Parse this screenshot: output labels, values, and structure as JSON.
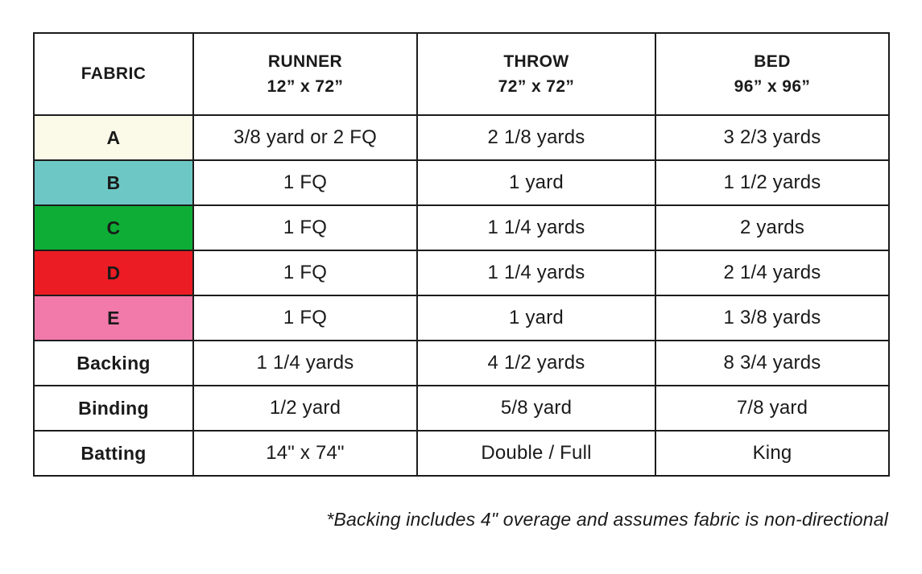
{
  "table": {
    "border_color": "#1c1c1c",
    "text_color": "#1a1a1a",
    "header": [
      {
        "label": "FABRIC",
        "sublabel": ""
      },
      {
        "label": "RUNNER",
        "sublabel": "12” x 72”"
      },
      {
        "label": "THROW",
        "sublabel": "72” x 72”"
      },
      {
        "label": "BED",
        "sublabel": "96” x 96”"
      }
    ],
    "rows": [
      {
        "label": "A",
        "swatch_color": "#FBFAE8",
        "runner": "3/8 yard or 2 FQ",
        "throw": "2 1/8 yards",
        "bed": "3 2/3 yards"
      },
      {
        "label": "B",
        "swatch_color": "#6DC8C5",
        "runner": "1 FQ",
        "throw": "1 yard",
        "bed": "1 1/2 yards"
      },
      {
        "label": "C",
        "swatch_color": "#0EAD36",
        "runner": "1 FQ",
        "throw": "1 1/4 yards",
        "bed": "2 yards"
      },
      {
        "label": "D",
        "swatch_color": "#EC1C24",
        "runner": "1 FQ",
        "throw": "1 1/4 yards",
        "bed": "2 1/4 yards"
      },
      {
        "label": "E",
        "swatch_color": "#F17AAB",
        "runner": "1 FQ",
        "throw": "1 yard",
        "bed": "1 3/8 yards"
      },
      {
        "label": "Backing",
        "swatch_color": "#FFFFFF",
        "runner": "1 1/4 yards",
        "throw": "4 1/2 yards",
        "bed": "8 3/4 yards"
      },
      {
        "label": "Binding",
        "swatch_color": "#FFFFFF",
        "runner": "1/2 yard",
        "throw": "5/8 yard",
        "bed": "7/8 yard"
      },
      {
        "label": "Batting",
        "swatch_color": "#FFFFFF",
        "runner": "14\" x 74\"",
        "throw": "Double / Full",
        "bed": "King"
      }
    ]
  },
  "footnote": "*Backing includes 4\" overage and assumes fabric is non-directional"
}
